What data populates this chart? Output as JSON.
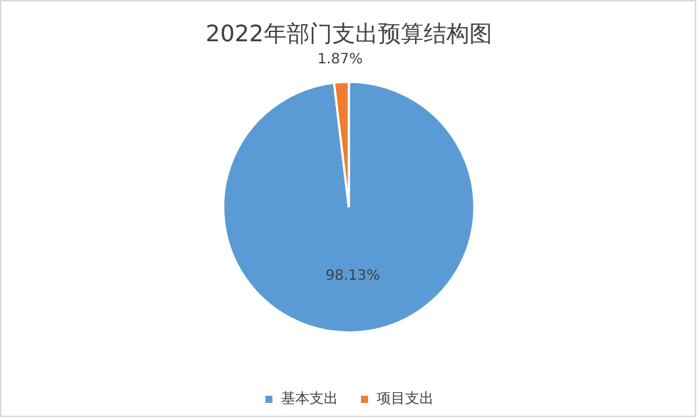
{
  "chart_data": {
    "type": "pie",
    "title": "2022年部门支出预算结构图",
    "categories": [
      "基本支出",
      "项目支出"
    ],
    "values": [
      98.13,
      1.87
    ],
    "colors": [
      "#5b9bd5",
      "#ed7d31"
    ],
    "value_labels": [
      "98.13%",
      "1.87%"
    ],
    "legend": "bottom"
  }
}
